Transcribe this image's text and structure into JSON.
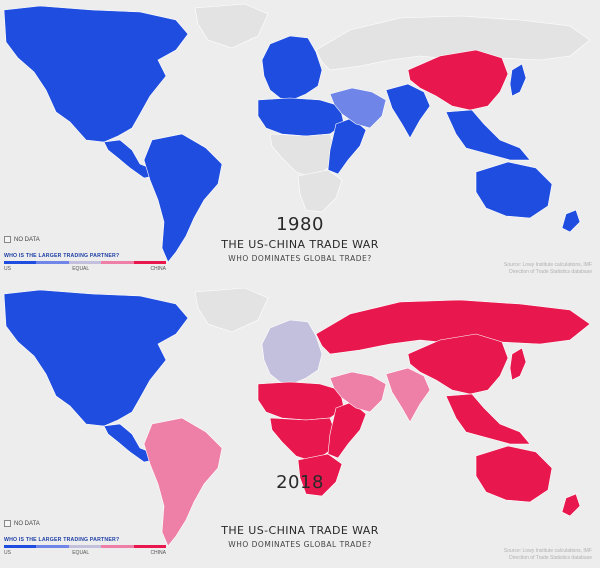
{
  "colors": {
    "us": "#1f4de0",
    "us_light": "#6f86e8",
    "equal": "#c3c0de",
    "china_light": "#ee7fa7",
    "china": "#e8184e",
    "no_data": "#e3e3e3",
    "ocean": "#ededed"
  },
  "legend": {
    "no_data_label": "NO DATA",
    "title": "WHO IS THE LARGER TRADING PARTNER?",
    "scale": [
      "US",
      "EQUAL",
      "CHINA"
    ]
  },
  "source": {
    "line1": "Source: Lowy Institute calculations, IMF",
    "line2": "Direction of Trade Statistics database"
  },
  "maps": [
    {
      "year": "1980",
      "headline": "THE US-CHINA TRADE WAR",
      "subline": "WHO DOMINATES GLOBAL TRADE?",
      "regions": {
        "north_america": "us",
        "greenland": "no_data",
        "central_america": "us",
        "south_america": "us",
        "europe": "us",
        "russia": "no_data",
        "middle_east": "us_light",
        "north_africa": "us",
        "central_africa": "no_data",
        "east_africa": "us",
        "southern_africa": "no_data",
        "india": "us",
        "china": "china",
        "southeast_asia": "us",
        "japan": "us",
        "australia": "us",
        "new_zealand": "us"
      }
    },
    {
      "year": "2018",
      "headline": "THE US-CHINA TRADE WAR",
      "subline": "WHO DOMINATES GLOBAL TRADE?",
      "regions": {
        "north_america": "us",
        "greenland": "no_data",
        "central_america": "us",
        "south_america": "china_light",
        "europe": "equal",
        "russia": "china",
        "middle_east": "china_light",
        "north_africa": "china",
        "central_africa": "china",
        "east_africa": "china",
        "southern_africa": "china",
        "india": "china_light",
        "china": "china",
        "southeast_asia": "china",
        "japan": "china",
        "australia": "china",
        "new_zealand": "china"
      }
    }
  ]
}
